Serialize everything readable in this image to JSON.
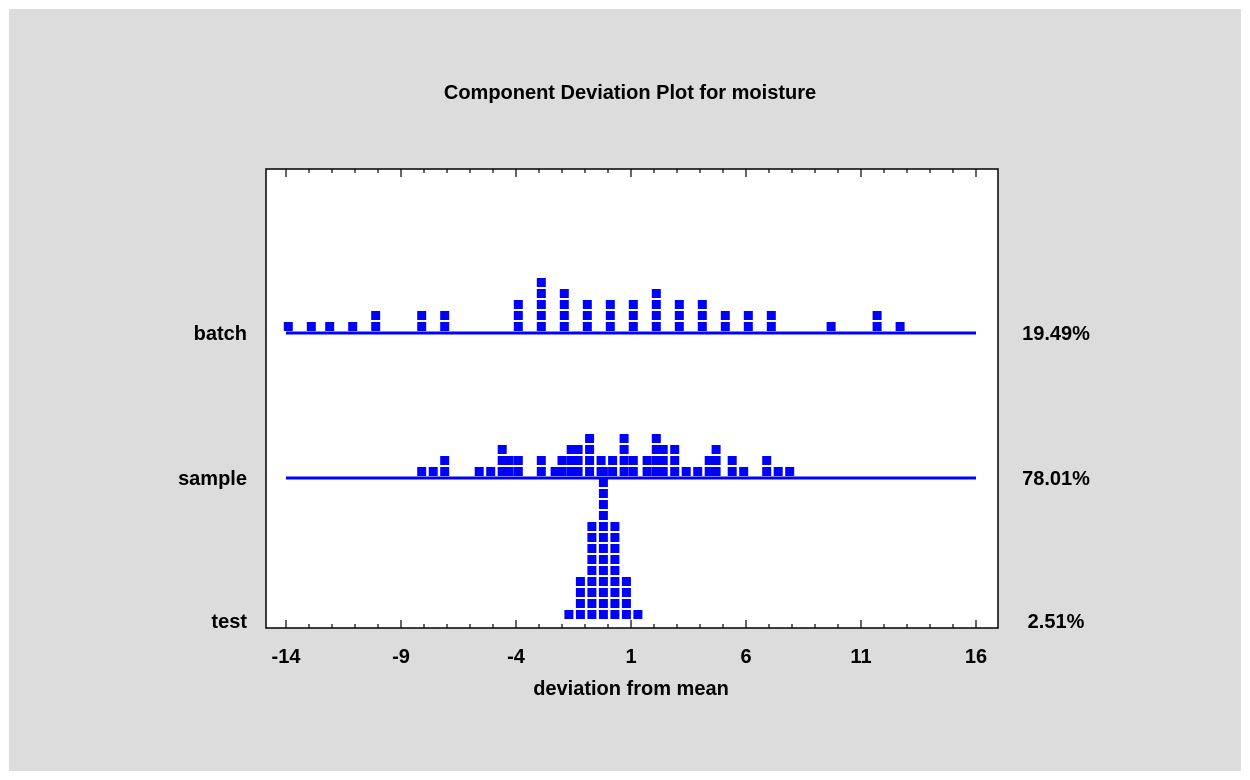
{
  "chart_data": {
    "type": "scatter",
    "title": "Component Deviation Plot for moisture",
    "xlabel": "deviation from mean",
    "xlim": [
      -14,
      16
    ],
    "xticks": [
      "-14",
      "-9",
      "-4",
      "1",
      "6",
      "11",
      "16"
    ],
    "grid": false,
    "rows": [
      {
        "name": "batch",
        "percent": "19.49%",
        "stacks": [
          [
            -13.9,
            1
          ],
          [
            -12.9,
            1
          ],
          [
            -12.1,
            1
          ],
          [
            -11.1,
            1
          ],
          [
            -10.1,
            2
          ],
          [
            -8.1,
            2
          ],
          [
            -7.1,
            2
          ],
          [
            -3.9,
            3
          ],
          [
            -2.9,
            5
          ],
          [
            -1.9,
            4
          ],
          [
            -0.9,
            3
          ],
          [
            0.1,
            3
          ],
          [
            1.1,
            3
          ],
          [
            2.1,
            4
          ],
          [
            3.1,
            3
          ],
          [
            4.1,
            3
          ],
          [
            5.1,
            2
          ],
          [
            6.1,
            2
          ],
          [
            7.1,
            2
          ],
          [
            9.7,
            1
          ],
          [
            11.7,
            2
          ],
          [
            12.7,
            1
          ]
        ]
      },
      {
        "name": "sample",
        "percent": "78.01%",
        "stacks": [
          [
            -8.1,
            1
          ],
          [
            -7.6,
            1
          ],
          [
            -7.1,
            2
          ],
          [
            -5.6,
            1
          ],
          [
            -5.1,
            1
          ],
          [
            -4.6,
            3
          ],
          [
            -4.3,
            2
          ],
          [
            -3.9,
            2
          ],
          [
            -2.9,
            2
          ],
          [
            -2.3,
            1
          ],
          [
            -2.0,
            2
          ],
          [
            -1.6,
            3
          ],
          [
            -1.3,
            3
          ],
          [
            -0.8,
            4
          ],
          [
            -0.3,
            2
          ],
          [
            0.2,
            2
          ],
          [
            0.7,
            4
          ],
          [
            1.1,
            2
          ],
          [
            1.7,
            2
          ],
          [
            2.1,
            4
          ],
          [
            2.4,
            3
          ],
          [
            2.9,
            3
          ],
          [
            3.4,
            1
          ],
          [
            3.9,
            1
          ],
          [
            4.4,
            2
          ],
          [
            4.7,
            3
          ],
          [
            5.4,
            2
          ],
          [
            5.9,
            1
          ],
          [
            6.9,
            2
          ],
          [
            7.4,
            1
          ],
          [
            7.9,
            1
          ]
        ]
      },
      {
        "name": "test",
        "percent": "2.51%",
        "stacks": [
          [
            -1.7,
            1
          ],
          [
            -1.2,
            4
          ],
          [
            -0.7,
            9
          ],
          [
            -0.2,
            14
          ],
          [
            0.3,
            9
          ],
          [
            0.8,
            4
          ],
          [
            1.3,
            1
          ]
        ]
      }
    ]
  }
}
